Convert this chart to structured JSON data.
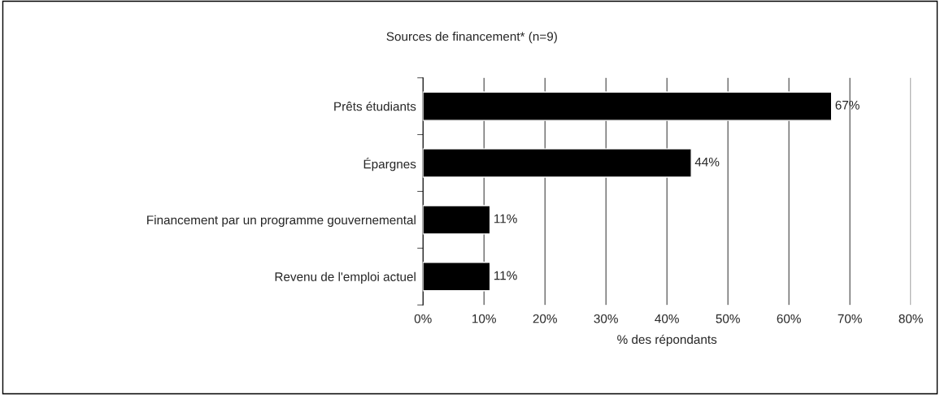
{
  "chart_data": {
    "type": "bar",
    "orientation": "horizontal",
    "title": "Sources de financement* (n=9)",
    "xlabel": "% des répondants",
    "categories": [
      "Prêts étudiants",
      "Épargnes",
      "Financement par un programme gouvernemental",
      "Revenu de l'emploi actuel"
    ],
    "values": [
      67,
      44,
      11,
      11
    ],
    "color": "#000000",
    "value_labels": [
      "67%",
      "44%",
      "11%",
      "11%"
    ],
    "xlim": [
      0,
      80
    ],
    "xticks": [
      {
        "value": 0,
        "label": "0%"
      },
      {
        "value": 10,
        "label": "10%"
      },
      {
        "value": 20,
        "label": "20%"
      },
      {
        "value": 30,
        "label": "30%"
      },
      {
        "value": 40,
        "label": "40%"
      },
      {
        "value": 50,
        "label": "50%"
      },
      {
        "value": 60,
        "label": "60%"
      },
      {
        "value": 70,
        "label": "70%"
      },
      {
        "value": 80,
        "label": "80%"
      }
    ],
    "grid": "x",
    "legend": false
  }
}
